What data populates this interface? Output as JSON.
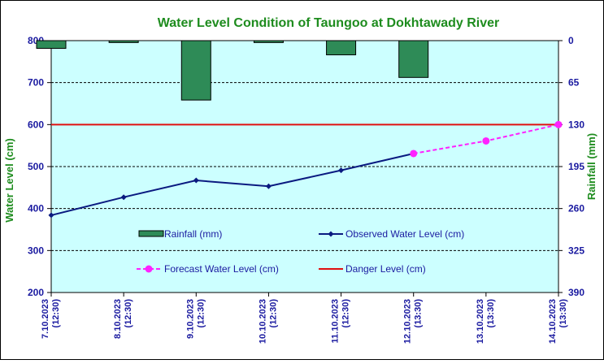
{
  "chart_data": {
    "type": "line",
    "title": "Water Level Condition  of  Taungoo at Dokhtawady River",
    "ylabel": "Water Level (cm)",
    "y2label": "Rainfall (mm)",
    "ylim": [
      200,
      800
    ],
    "yticks": [
      "200",
      "300",
      "400",
      "500",
      "600",
      "700",
      "800"
    ],
    "y2lim": [
      0,
      390
    ],
    "y2ticks": [
      "0",
      "65",
      "130",
      "195",
      "260",
      "325",
      "390"
    ],
    "y2_inverted": true,
    "grid": "horizontal-dashed",
    "categories": [
      [
        "7.10.2023",
        "(12:30)"
      ],
      [
        "8.10.2023",
        "(12:30)"
      ],
      [
        "9.10.2023",
        "(12:30)"
      ],
      [
        "10.10.2023",
        "(12:30)"
      ],
      [
        "11.10.2023",
        "(12:30)"
      ],
      [
        "12.10.2023",
        "(13:30)"
      ],
      [
        "13.10.2023",
        "(13:30)"
      ],
      [
        "14.10.2023",
        "(13:30)"
      ]
    ],
    "series": [
      {
        "name": "Rainfall (mm)",
        "type": "bar",
        "axis": "right",
        "color": "#2e8b57",
        "values": [
          12,
          3,
          92,
          3,
          22,
          57,
          null,
          null
        ]
      },
      {
        "name": "Observed Water Level (cm)",
        "type": "line",
        "axis": "left",
        "color": "#0a1a80",
        "marker": "diamond",
        "values": [
          384,
          427,
          467,
          453,
          491,
          531,
          null,
          null
        ]
      },
      {
        "name": "Forecast Water Level (cm)",
        "type": "line",
        "axis": "left",
        "color": "#ff22ff",
        "marker": "circle",
        "dashed": true,
        "values": [
          null,
          null,
          null,
          null,
          null,
          531,
          561,
          600
        ]
      },
      {
        "name": "Danger Level (cm)",
        "type": "hline",
        "axis": "left",
        "color": "#e01010",
        "value": 600
      }
    ],
    "colors": {
      "plot_background": "#ccffff",
      "tick_text": "#1a1aa0",
      "title_text": "#1e8c1e"
    }
  }
}
